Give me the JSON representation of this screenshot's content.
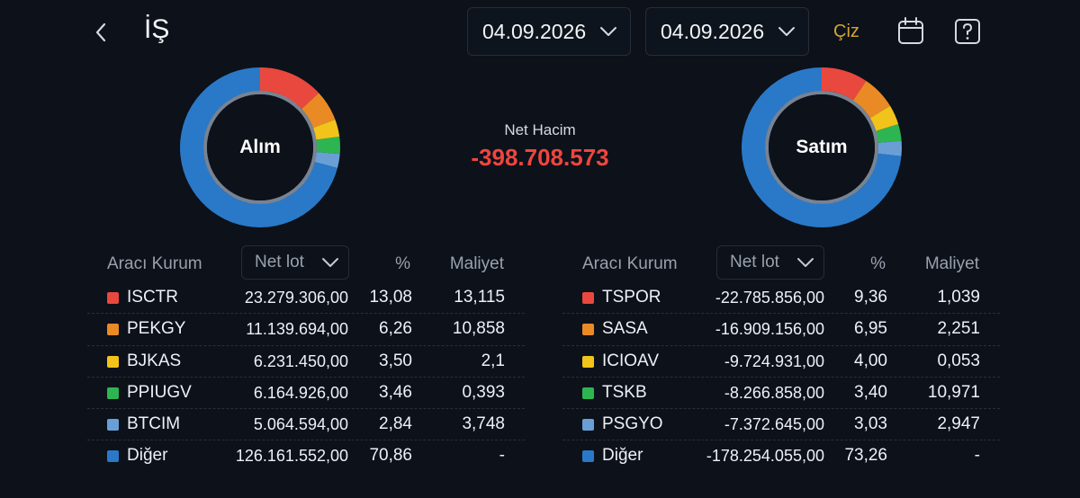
{
  "header": {
    "title": "İŞ",
    "date_from": "04.09.2026",
    "date_to": "04.09.2026",
    "draw_label": "Çiz"
  },
  "summary": {
    "net_label": "Net Hacim",
    "net_value": "-398.708.573"
  },
  "colors": {
    "red": "#e8483e",
    "orange": "#ea8a25",
    "yellow": "#f2c31b",
    "green": "#2db552",
    "light_blue": "#6a9fd6",
    "blue": "#2a79c8",
    "negative": "#f0453d",
    "accent": "#d6a431"
  },
  "buy": {
    "donut_label": "Alım",
    "headers": {
      "broker": "Aracı Kurum",
      "sort": "Net lot",
      "pct": "%",
      "cost": "Maliyet"
    },
    "rows": [
      {
        "name": "ISCTR",
        "lot": "23.279.306,00",
        "pct": "13,08",
        "cost": "13,115",
        "share": 13.08,
        "color": "#e8483e"
      },
      {
        "name": "PEKGY",
        "lot": "11.139.694,00",
        "pct": "6,26",
        "cost": "10,858",
        "share": 6.26,
        "color": "#ea8a25"
      },
      {
        "name": "BJKAS",
        "lot": "6.231.450,00",
        "pct": "3,50",
        "cost": "2,1",
        "share": 3.5,
        "color": "#f2c31b"
      },
      {
        "name": "PPIUGV",
        "lot": "6.164.926,00",
        "pct": "3,46",
        "cost": "0,393",
        "share": 3.46,
        "color": "#2db552"
      },
      {
        "name": "BTCIM",
        "lot": "5.064.594,00",
        "pct": "2,84",
        "cost": "3,748",
        "share": 2.84,
        "color": "#6a9fd6"
      },
      {
        "name": "Diğer",
        "lot": "126.161.552,00",
        "pct": "70,86",
        "cost": "-",
        "share": 70.86,
        "color": "#2a79c8"
      }
    ]
  },
  "sell": {
    "donut_label": "Satım",
    "headers": {
      "broker": "Aracı Kurum",
      "sort": "Net lot",
      "pct": "%",
      "cost": "Maliyet"
    },
    "rows": [
      {
        "name": "TSPOR",
        "lot": "-22.785.856,00",
        "pct": "9,36",
        "cost": "1,039",
        "share": 9.36,
        "color": "#e8483e"
      },
      {
        "name": "SASA",
        "lot": "-16.909.156,00",
        "pct": "6,95",
        "cost": "2,251",
        "share": 6.95,
        "color": "#ea8a25"
      },
      {
        "name": "ICIOAV",
        "lot": "-9.724.931,00",
        "pct": "4,00",
        "cost": "0,053",
        "share": 4.0,
        "color": "#f2c31b"
      },
      {
        "name": "TSKB",
        "lot": "-8.266.858,00",
        "pct": "3,40",
        "cost": "10,971",
        "share": 3.4,
        "color": "#2db552"
      },
      {
        "name": "PSGYO",
        "lot": "-7.372.645,00",
        "pct": "3,03",
        "cost": "2,947",
        "share": 3.03,
        "color": "#6a9fd6"
      },
      {
        "name": "Diğer",
        "lot": "-178.254.055,00",
        "pct": "73,26",
        "cost": "-",
        "share": 73.26,
        "color": "#2a79c8"
      }
    ]
  }
}
